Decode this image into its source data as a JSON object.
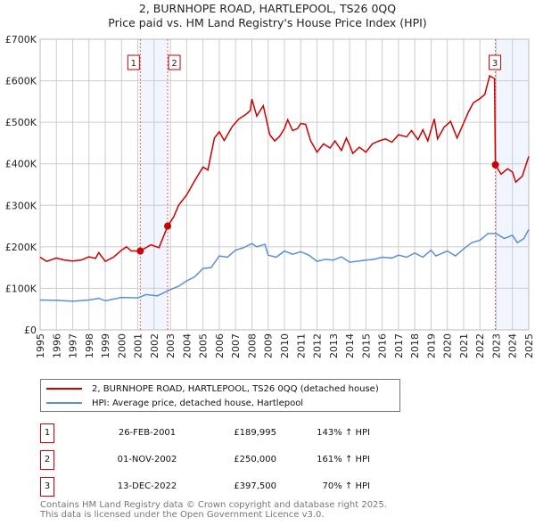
{
  "chart_data": {
    "type": "line",
    "title": "2, BURNHOPE ROAD, HARTLEPOOL, TS26 0QQ",
    "subtitle": "Price paid vs. HM Land Registry's House Price Index (HPI)",
    "xlim": [
      1995,
      2025
    ],
    "ylim": [
      0,
      700000
    ],
    "x_ticks": [
      "1995",
      "1996",
      "1997",
      "1998",
      "1999",
      "2000",
      "2001",
      "2002",
      "2003",
      "2004",
      "2005",
      "2006",
      "2007",
      "2008",
      "2009",
      "2010",
      "2011",
      "2012",
      "2013",
      "2014",
      "2015",
      "2016",
      "2017",
      "2018",
      "2019",
      "2020",
      "2021",
      "2022",
      "2023",
      "2024",
      "2025"
    ],
    "y_ticks": [
      {
        "v": 0,
        "label": "£0"
      },
      {
        "v": 100000,
        "label": "£100K"
      },
      {
        "v": 200000,
        "label": "£200K"
      },
      {
        "v": 300000,
        "label": "£300K"
      },
      {
        "v": 400000,
        "label": "£400K"
      },
      {
        "v": 500000,
        "label": "£500K"
      },
      {
        "v": 600000,
        "label": "£600K"
      },
      {
        "v": 700000,
        "label": "£700K"
      }
    ],
    "grid": true,
    "series": [
      {
        "name": "2, BURNHOPE ROAD, HARTLEPOOL, TS26 0QQ (detached house)",
        "color": "#cc0000",
        "points": [
          [
            1995,
            175
          ],
          [
            1995.4,
            165
          ],
          [
            1996,
            173
          ],
          [
            1996.5,
            168
          ],
          [
            1997,
            166
          ],
          [
            1997.5,
            168
          ],
          [
            1998,
            176
          ],
          [
            1998.4,
            172
          ],
          [
            1998.6,
            186
          ],
          [
            1999,
            165
          ],
          [
            1999.5,
            175
          ],
          [
            2000,
            192
          ],
          [
            2000.3,
            200
          ],
          [
            2000.6,
            190
          ],
          [
            2001.15,
            190
          ],
          [
            2001.8,
            205
          ],
          [
            2002.3,
            198
          ],
          [
            2002.83,
            250
          ],
          [
            2003.2,
            272
          ],
          [
            2003.5,
            300
          ],
          [
            2004,
            325
          ],
          [
            2004.5,
            360
          ],
          [
            2005,
            392
          ],
          [
            2005.3,
            385
          ],
          [
            2005.7,
            462
          ],
          [
            2006,
            477
          ],
          [
            2006.3,
            456
          ],
          [
            2006.8,
            490
          ],
          [
            2007.2,
            508
          ],
          [
            2007.6,
            518
          ],
          [
            2007.9,
            528
          ],
          [
            2008,
            556
          ],
          [
            2008.3,
            515
          ],
          [
            2008.7,
            540
          ],
          [
            2008.9,
            505
          ],
          [
            2009.1,
            470
          ],
          [
            2009.4,
            455
          ],
          [
            2009.7,
            466
          ],
          [
            2010,
            485
          ],
          [
            2010.2,
            506
          ],
          [
            2010.5,
            480
          ],
          [
            2010.8,
            485
          ],
          [
            2011,
            497
          ],
          [
            2011.3,
            495
          ],
          [
            2011.6,
            456
          ],
          [
            2012,
            428
          ],
          [
            2012.4,
            448
          ],
          [
            2012.8,
            438
          ],
          [
            2013.1,
            455
          ],
          [
            2013.5,
            432
          ],
          [
            2013.8,
            462
          ],
          [
            2014,
            445
          ],
          [
            2014.2,
            425
          ],
          [
            2014.6,
            440
          ],
          [
            2015,
            428
          ],
          [
            2015.4,
            448
          ],
          [
            2015.8,
            455
          ],
          [
            2016.2,
            460
          ],
          [
            2016.6,
            452
          ],
          [
            2017,
            470
          ],
          [
            2017.5,
            465
          ],
          [
            2017.8,
            480
          ],
          [
            2018.2,
            458
          ],
          [
            2018.5,
            482
          ],
          [
            2018.8,
            455
          ],
          [
            2019.2,
            508
          ],
          [
            2019.4,
            460
          ],
          [
            2019.8,
            488
          ],
          [
            2020.2,
            502
          ],
          [
            2020.6,
            462
          ],
          [
            2021,
            498
          ],
          [
            2021.3,
            525
          ],
          [
            2021.6,
            547
          ],
          [
            2022,
            557
          ],
          [
            2022.3,
            567
          ],
          [
            2022.6,
            612
          ],
          [
            2022.9,
            605
          ],
          [
            2022.95,
            397.5
          ],
          [
            2023.3,
            375
          ],
          [
            2023.7,
            388
          ],
          [
            2024,
            380
          ],
          [
            2024.2,
            356
          ],
          [
            2024.6,
            370
          ],
          [
            2025,
            418
          ]
        ]
      },
      {
        "name": "HPI: Average price, detached house, Hartlepool",
        "color": "#5b8fd4",
        "points": [
          [
            1995,
            72
          ],
          [
            1996,
            71
          ],
          [
            1997,
            69
          ],
          [
            1998,
            72
          ],
          [
            1998.6,
            76
          ],
          [
            1999,
            70
          ],
          [
            2000,
            78
          ],
          [
            2001,
            77
          ],
          [
            2001.5,
            85
          ],
          [
            2002.2,
            82
          ],
          [
            2003,
            97
          ],
          [
            2003.5,
            105
          ],
          [
            2004,
            118
          ],
          [
            2004.5,
            128
          ],
          [
            2005,
            148
          ],
          [
            2005.5,
            150
          ],
          [
            2006,
            178
          ],
          [
            2006.5,
            175
          ],
          [
            2007,
            192
          ],
          [
            2007.5,
            198
          ],
          [
            2008,
            208
          ],
          [
            2008.3,
            200
          ],
          [
            2008.8,
            206
          ],
          [
            2009,
            180
          ],
          [
            2009.5,
            175
          ],
          [
            2010,
            190
          ],
          [
            2010.5,
            182
          ],
          [
            2011,
            188
          ],
          [
            2011.5,
            180
          ],
          [
            2012,
            165
          ],
          [
            2012.5,
            170
          ],
          [
            2013,
            168
          ],
          [
            2013.5,
            176
          ],
          [
            2014,
            163
          ],
          [
            2015,
            168
          ],
          [
            2015.5,
            170
          ],
          [
            2016,
            175
          ],
          [
            2016.6,
            173
          ],
          [
            2017,
            180
          ],
          [
            2017.5,
            175
          ],
          [
            2018,
            185
          ],
          [
            2018.5,
            175
          ],
          [
            2019,
            192
          ],
          [
            2019.3,
            178
          ],
          [
            2020,
            190
          ],
          [
            2020.5,
            178
          ],
          [
            2021,
            195
          ],
          [
            2021.5,
            210
          ],
          [
            2022,
            216
          ],
          [
            2022.5,
            232
          ],
          [
            2023,
            232
          ],
          [
            2023.5,
            220
          ],
          [
            2024,
            228
          ],
          [
            2024.3,
            210
          ],
          [
            2024.7,
            220
          ],
          [
            2025,
            242
          ]
        ]
      }
    ],
    "units_note": "series values in £K",
    "sales": [
      {
        "id": "1",
        "x": 2001.15,
        "price": 189995,
        "date": "26-FEB-2001",
        "price_label": "£189,995",
        "hpi_label": "143% ↑ HPI"
      },
      {
        "id": "2",
        "x": 2002.83,
        "price": 250000,
        "date": "01-NOV-2002",
        "price_label": "£250,000",
        "hpi_label": "161% ↑ HPI"
      },
      {
        "id": "3",
        "x": 2022.95,
        "price": 397500,
        "date": "13-DEC-2022",
        "price_label": "£397,500",
        "hpi_label": "70% ↑ HPI"
      }
    ],
    "shaded_ranges": [
      [
        2001.15,
        2002.83
      ],
      [
        2022.95,
        2025
      ]
    ],
    "legend_position": "below"
  },
  "footer": {
    "line1": "Contains HM Land Registry data © Crown copyright and database right 2025.",
    "line2": "This data is licensed under the Open Government Licence v3.0."
  }
}
